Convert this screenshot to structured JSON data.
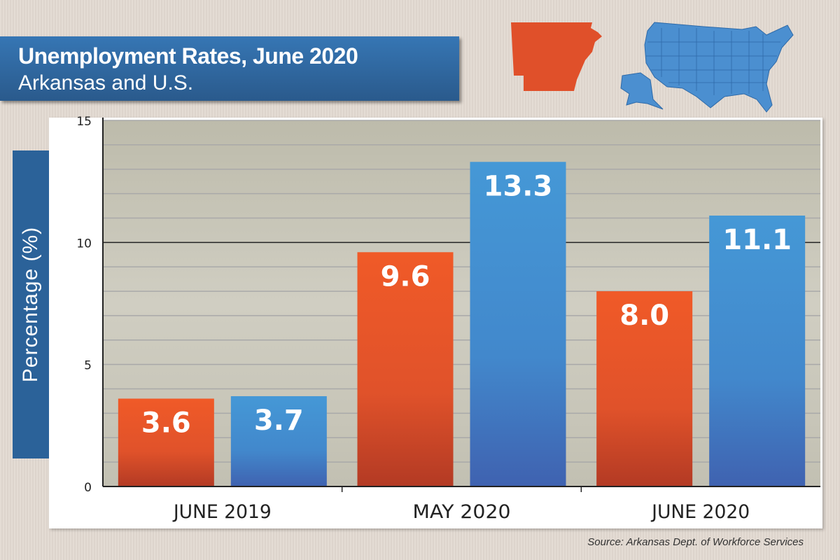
{
  "header": {
    "title": "Unemployment Rates, June 2020",
    "subtitle": "Arkansas and U.S."
  },
  "icons": {
    "arkansas": "arkansas-state-map-icon",
    "us": "us-map-icon"
  },
  "source": "Source: Arkansas Dept. of Workforce Services",
  "colors": {
    "arkansas": "#f05a28",
    "us": "#4494d4",
    "header": "#2b6299"
  },
  "chart_data": {
    "type": "bar",
    "title": "Unemployment Rates, June 2020",
    "subtitle": "Arkansas and U.S.",
    "ylabel": "Percentage (%)",
    "xlabel": "",
    "categories": [
      "JUNE 2019",
      "MAY 2020",
      "JUNE 2020"
    ],
    "series": [
      {
        "values": [
          3.6,
          9.6,
          8.0
        ],
        "color": "#f05a28"
      },
      {
        "values": [
          3.7,
          13.3,
          11.1
        ],
        "color": "#4494d4"
      }
    ],
    "data_labels": [
      [
        "3.6",
        "9.6",
        "8.0"
      ],
      [
        "3.7",
        "13.3",
        "11.1"
      ]
    ],
    "ylim": [
      0,
      15
    ],
    "yticks": [
      "0",
      "5",
      "10",
      "15"
    ],
    "grid": true,
    "legend": "none"
  }
}
